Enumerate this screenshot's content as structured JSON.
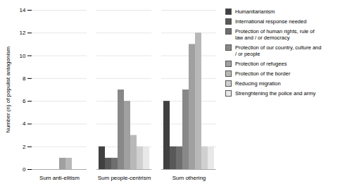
{
  "chart_data": {
    "type": "bar",
    "categories": [
      "Sum anti-elitism",
      "Sum people-centrism",
      "Sum othering"
    ],
    "series": [
      {
        "name": "Humanitarianism",
        "color": "#404040",
        "values": [
          0,
          2,
          6
        ]
      },
      {
        "name": "International response needed",
        "color": "#595959",
        "values": [
          0,
          1,
          2
        ]
      },
      {
        "name": "Protection of human rights, rule of\nlaw and / or democracy",
        "color": "#6e6e6e",
        "values": [
          0,
          1,
          2
        ]
      },
      {
        "name": "Protection of our country, culture and\n/ or people",
        "color": "#888888",
        "values": [
          0,
          7,
          7
        ]
      },
      {
        "name": "Protection of refugees",
        "color": "#a0a0a0",
        "values": [
          1,
          6,
          11
        ]
      },
      {
        "name": "Protection of the border",
        "color": "#b8b8b8",
        "values": [
          1,
          3,
          12
        ]
      },
      {
        "name": "Reducing migration",
        "color": "#d0d0d0",
        "values": [
          0,
          2,
          2
        ]
      },
      {
        "name": "Strenghtening the police and army",
        "color": "#e8e8e8",
        "values": [
          0,
          2,
          2
        ]
      }
    ],
    "ylabel": "Number (n) of populist antagonism",
    "ylim": [
      0,
      14
    ],
    "yticks": [
      0,
      2,
      4,
      6,
      8,
      10,
      12,
      14
    ],
    "grid": true,
    "legend": "right"
  }
}
